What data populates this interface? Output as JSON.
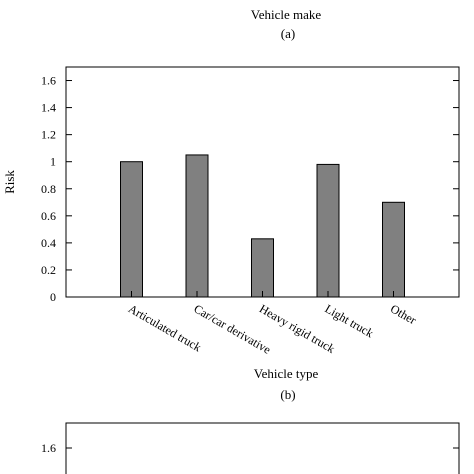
{
  "top_panel": {
    "xlabel": "Vehicle make",
    "caption": "(a)"
  },
  "chart_data": [
    {
      "type": "bar",
      "title": "",
      "caption": "(b)",
      "xlabel": "Vehicle type",
      "ylabel": "Risk",
      "categories": [
        "Articulated truck",
        "Car/car derivative",
        "Heavy rigid truck",
        "Light truck",
        "Other"
      ],
      "values": [
        1.0,
        1.05,
        0.43,
        0.98,
        0.7
      ],
      "ylim": [
        0,
        1.7
      ],
      "yticks": [
        "0",
        "0.2",
        "0.4",
        "0.6",
        "0.8",
        "1",
        "1.2",
        "1.4",
        "1.6"
      ],
      "bar_color": "#808080",
      "grid": false,
      "legend": "none"
    },
    {
      "type": "bar",
      "partial": true,
      "visible_yticks": [
        "1.6"
      ]
    }
  ]
}
